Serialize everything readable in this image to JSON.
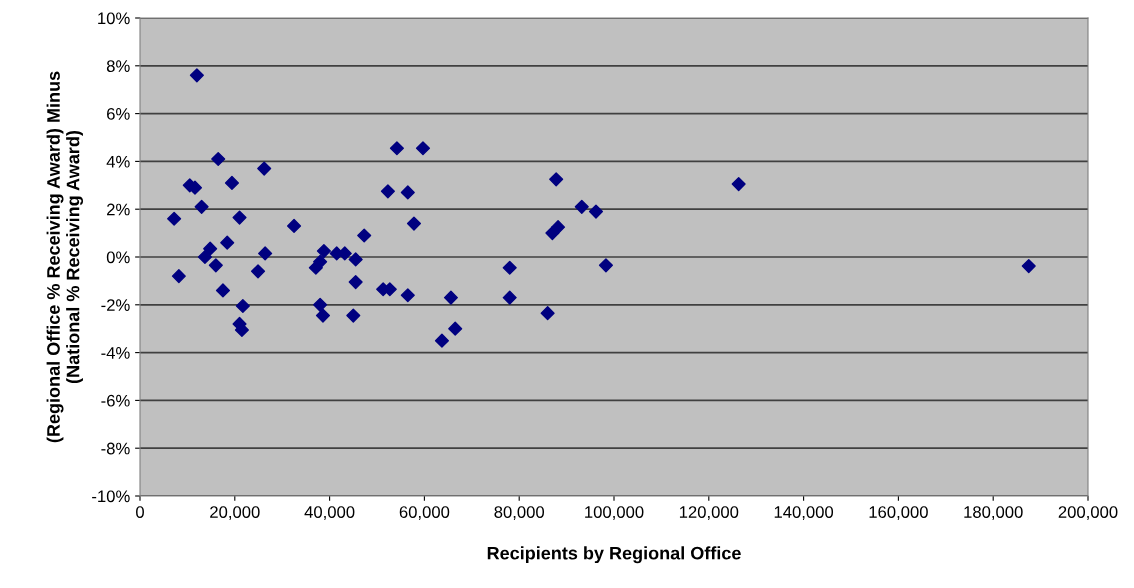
{
  "chart_data": {
    "type": "scatter",
    "xlabel": "Recipients by Regional Office",
    "ylabel": "(Regional Office % Receiving Award) Minus\n(National % Receiving Award)",
    "x": [
      7200,
      8200,
      12000,
      10500,
      11600,
      13000,
      13700,
      14800,
      16000,
      16500,
      17500,
      18400,
      19400,
      21000,
      21000,
      21500,
      21700,
      24900,
      26200,
      26400,
      32500,
      37100,
      38000,
      38000,
      38600,
      38800,
      41500,
      43200,
      45000,
      45500,
      45500,
      47300,
      51300,
      52700,
      52300,
      54200,
      56500,
      56500,
      57800,
      59700,
      63700,
      65600,
      66500,
      78000,
      78000,
      86000,
      87000,
      88200,
      87800,
      93200,
      96200,
      98300,
      126300,
      187500
    ],
    "series": [
      {
        "color": "#000080",
        "values": [
          1.6,
          -0.8,
          7.6,
          3.0,
          2.9,
          2.1,
          0.0,
          0.35,
          -0.35,
          4.1,
          -1.4,
          0.6,
          3.1,
          1.65,
          -2.8,
          -3.05,
          -2.05,
          -0.6,
          3.7,
          0.15,
          1.3,
          -0.45,
          -0.2,
          -2.0,
          -2.45,
          0.25,
          0.15,
          0.15,
          -2.45,
          -0.1,
          -1.05,
          0.9,
          -1.35,
          -1.35,
          2.75,
          4.55,
          2.7,
          -1.6,
          1.4,
          4.55,
          -3.5,
          -1.7,
          -3.0,
          -0.45,
          -1.7,
          -2.35,
          1.0,
          1.25,
          3.25,
          2.1,
          1.9,
          -0.35,
          3.05,
          -0.38
        ]
      }
    ],
    "marker": "diamond",
    "xlim": [
      0,
      200000
    ],
    "xticks": [
      {
        "value": 0,
        "label": "0"
      },
      {
        "value": 20000,
        "label": "20,000"
      },
      {
        "value": 40000,
        "label": "40,000"
      },
      {
        "value": 60000,
        "label": "60,000"
      },
      {
        "value": 80000,
        "label": "80,000"
      },
      {
        "value": 100000,
        "label": "100,000"
      },
      {
        "value": 120000,
        "label": "120,000"
      },
      {
        "value": 140000,
        "label": "140,000"
      },
      {
        "value": 160000,
        "label": "160,000"
      },
      {
        "value": 180000,
        "label": "180,000"
      },
      {
        "value": 200000,
        "label": "200,000"
      }
    ],
    "ylim": [
      -10,
      10
    ],
    "yticks": [
      {
        "value": -10,
        "label": "-10%"
      },
      {
        "value": -8,
        "label": "-8%"
      },
      {
        "value": -6,
        "label": "-6%"
      },
      {
        "value": -4,
        "label": "-4%"
      },
      {
        "value": -2,
        "label": "-2%"
      },
      {
        "value": 0,
        "label": "0%"
      },
      {
        "value": 2,
        "label": "2%"
      },
      {
        "value": 4,
        "label": "4%"
      },
      {
        "value": 6,
        "label": "6%"
      },
      {
        "value": 8,
        "label": "8%"
      },
      {
        "value": 10,
        "label": "10%"
      }
    ],
    "grid": "y",
    "legend": false
  }
}
